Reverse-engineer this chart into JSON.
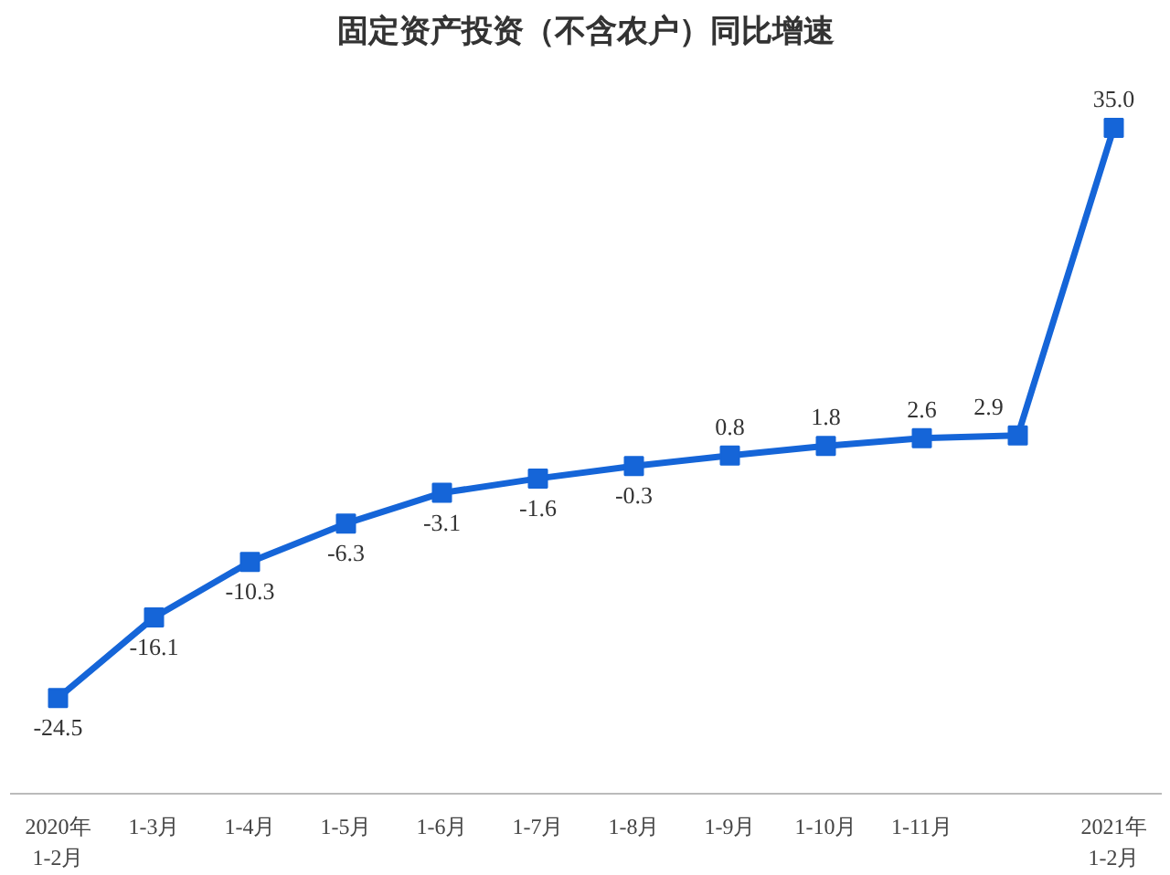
{
  "chart_data": {
    "type": "line",
    "title": "固定资产投资（不含农户）同比增速",
    "categories": [
      "2020年\n1-2月",
      "1-3月",
      "1-4月",
      "1-5月",
      "1-6月",
      "1-7月",
      "1-8月",
      "1-9月",
      "1-10月",
      "1-11月",
      null,
      "2021年\n1-2月"
    ],
    "series": [
      {
        "color": "#1565d8",
        "values": [
          -24.5,
          -16.1,
          -10.3,
          -6.3,
          -3.1,
          -1.6,
          -0.3,
          0.8,
          1.8,
          2.6,
          2.9,
          35.0
        ],
        "value_labels": [
          "-24.5",
          "-16.1",
          "-10.3",
          "-6.3",
          "-3.1",
          "-1.6",
          "-0.3",
          "0.8",
          "1.8",
          "2.6",
          "2.9",
          "35.0"
        ]
      }
    ],
    "marker": "square",
    "line_style": "solid"
  }
}
